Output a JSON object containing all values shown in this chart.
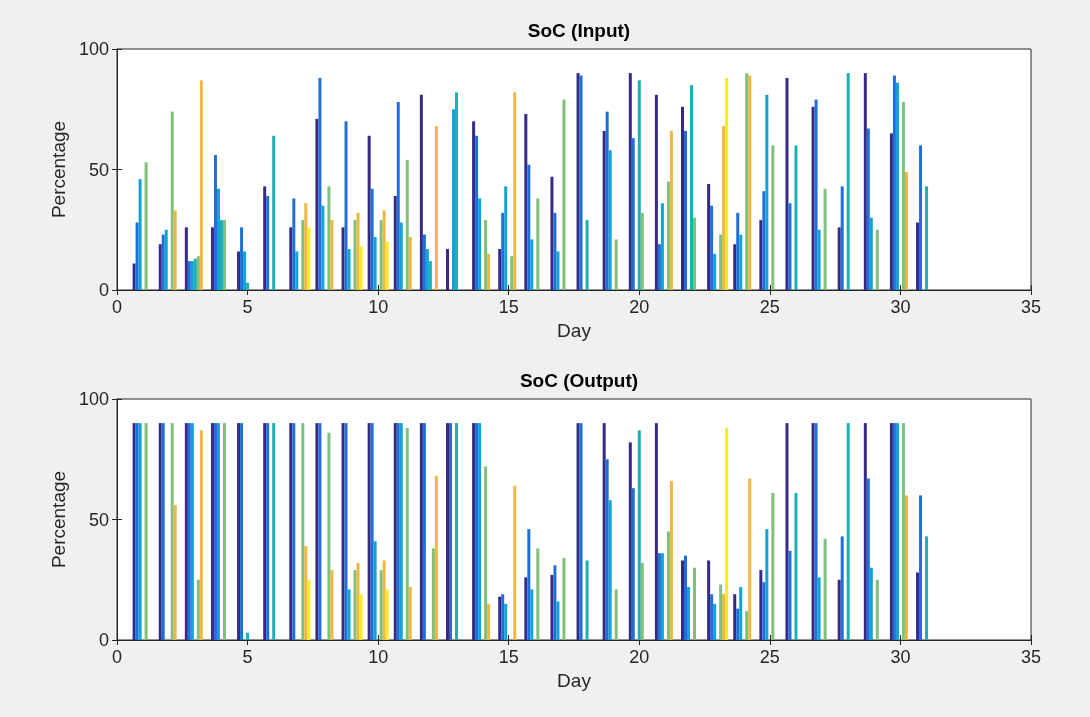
{
  "chart_data": [
    {
      "type": "bar",
      "title": "SoC (Input)",
      "xlabel": "Day",
      "ylabel": "Percentage",
      "x": [
        1,
        2,
        3,
        4,
        5,
        6,
        7,
        8,
        9,
        10,
        11,
        12,
        13,
        14,
        15,
        16,
        17,
        18,
        19,
        20,
        21,
        22,
        23,
        24,
        25,
        26,
        27,
        28,
        29,
        30,
        31
      ],
      "xlim": [
        0,
        35
      ],
      "xticks": [
        0,
        5,
        10,
        15,
        20,
        25,
        30,
        35
      ],
      "ylim": [
        0,
        100
      ],
      "yticks": [
        0,
        50,
        100
      ],
      "grid": false,
      "series": [
        {
          "color": "#352a87",
          "values": [
            11,
            19,
            26,
            26,
            16,
            43,
            26,
            71,
            26,
            64,
            39,
            81,
            17,
            70,
            17,
            73,
            47,
            90,
            66,
            90,
            81,
            76,
            44,
            19,
            29,
            88,
            76,
            26,
            90,
            65,
            28
          ]
        },
        {
          "color": "#1f6fd8",
          "values": [
            28,
            23,
            12,
            56,
            26,
            39,
            38,
            88,
            70,
            42,
            78,
            23,
            0,
            64,
            32,
            52,
            32,
            89,
            74,
            63,
            19,
            66,
            35,
            32,
            41,
            36,
            79,
            43,
            67,
            89,
            60
          ]
        },
        {
          "color": "#11a2d6",
          "values": [
            46,
            25,
            12,
            42,
            16,
            0,
            16,
            35,
            17,
            22,
            28,
            17,
            75,
            38,
            43,
            21,
            16,
            0,
            58,
            0,
            36,
            0,
            15,
            23,
            81,
            0,
            25,
            0,
            30,
            86,
            0
          ]
        },
        {
          "color": "#19b1b4",
          "values": [
            0,
            0,
            13,
            29,
            3,
            64,
            0,
            0,
            0,
            0,
            0,
            12,
            82,
            0,
            0,
            0,
            0,
            29,
            0,
            87,
            0,
            85,
            0,
            0,
            0,
            60,
            0,
            90,
            0,
            0,
            43
          ]
        },
        {
          "color": "#7fc07a",
          "values": [
            53,
            74,
            14,
            29,
            0,
            0,
            29,
            43,
            29,
            29,
            54,
            0,
            0,
            29,
            14,
            38,
            79,
            0,
            21,
            32,
            45,
            30,
            23,
            90,
            60,
            0,
            42,
            0,
            25,
            78,
            0
          ]
        },
        {
          "color": "#efb641",
          "values": [
            0,
            33,
            87,
            0,
            0,
            0,
            36,
            29,
            32,
            33,
            22,
            68,
            0,
            15,
            82,
            0,
            0,
            0,
            0,
            0,
            66,
            0,
            68,
            89,
            0,
            0,
            0,
            0,
            0,
            49,
            0
          ]
        },
        {
          "color": "#f8ea20",
          "values": [
            0,
            0,
            0,
            0,
            0,
            0,
            26,
            0,
            18,
            20,
            0,
            0,
            0,
            0,
            0,
            0,
            0,
            0,
            0,
            0,
            0,
            0,
            88,
            0,
            0,
            0,
            0,
            0,
            0,
            0,
            0
          ]
        }
      ]
    },
    {
      "type": "bar",
      "title": "SoC (Output)",
      "xlabel": "Day",
      "ylabel": "Percentage",
      "x": [
        1,
        2,
        3,
        4,
        5,
        6,
        7,
        8,
        9,
        10,
        11,
        12,
        13,
        14,
        15,
        16,
        17,
        18,
        19,
        20,
        21,
        22,
        23,
        24,
        25,
        26,
        27,
        28,
        29,
        30,
        31
      ],
      "xlim": [
        0,
        35
      ],
      "xticks": [
        0,
        5,
        10,
        15,
        20,
        25,
        30,
        35
      ],
      "ylim": [
        0,
        100
      ],
      "yticks": [
        0,
        50,
        100
      ],
      "grid": false,
      "series": [
        {
          "color": "#352a87",
          "values": [
            90,
            90,
            90,
            90,
            90,
            90,
            90,
            90,
            90,
            90,
            90,
            90,
            90,
            90,
            18,
            26,
            27,
            90,
            90,
            82,
            90,
            33,
            33,
            19,
            29,
            90,
            90,
            25,
            90,
            90,
            28
          ]
        },
        {
          "color": "#1f6fd8",
          "values": [
            90,
            90,
            90,
            90,
            90,
            90,
            90,
            90,
            90,
            90,
            90,
            90,
            90,
            90,
            19,
            46,
            31,
            90,
            75,
            63,
            36,
            35,
            19,
            13,
            24,
            37,
            90,
            43,
            67,
            90,
            60
          ]
        },
        {
          "color": "#11a2d6",
          "values": [
            90,
            0,
            90,
            90,
            0,
            0,
            0,
            0,
            21,
            41,
            90,
            0,
            0,
            90,
            15,
            21,
            16,
            0,
            58,
            0,
            36,
            22,
            15,
            22,
            46,
            0,
            26,
            0,
            30,
            90,
            0
          ]
        },
        {
          "color": "#19b1b4",
          "values": [
            0,
            0,
            0,
            0,
            3,
            90,
            0,
            0,
            0,
            0,
            0,
            0,
            90,
            0,
            0,
            0,
            0,
            33,
            0,
            87,
            0,
            0,
            0,
            0,
            0,
            61,
            0,
            90,
            0,
            0,
            43
          ]
        },
        {
          "color": "#7fc07a",
          "values": [
            90,
            90,
            25,
            90,
            0,
            0,
            90,
            86,
            29,
            29,
            88,
            38,
            0,
            72,
            0,
            38,
            34,
            0,
            21,
            32,
            45,
            30,
            23,
            12,
            61,
            0,
            42,
            0,
            25,
            90,
            0
          ]
        },
        {
          "color": "#efb641",
          "values": [
            0,
            56,
            87,
            0,
            0,
            0,
            39,
            29,
            32,
            33,
            22,
            68,
            0,
            15,
            64,
            0,
            0,
            0,
            0,
            0,
            66,
            0,
            19,
            67,
            0,
            0,
            0,
            0,
            0,
            60,
            0
          ]
        },
        {
          "color": "#f8ea20",
          "values": [
            0,
            0,
            0,
            0,
            0,
            0,
            25,
            0,
            19,
            21,
            0,
            0,
            0,
            0,
            0,
            0,
            0,
            0,
            0,
            0,
            0,
            0,
            88,
            0,
            0,
            0,
            0,
            0,
            0,
            0,
            0
          ]
        }
      ]
    }
  ]
}
